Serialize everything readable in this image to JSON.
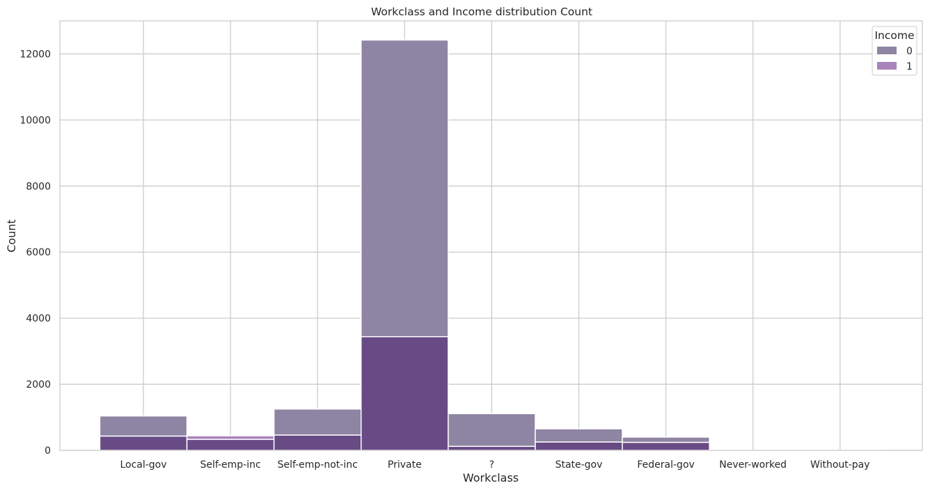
{
  "chart_data": {
    "type": "bar",
    "title": "Workclass and Income distribution Count",
    "xlabel": "Workclass",
    "ylabel": "Count",
    "categories": [
      "Local-gov",
      "Self-emp-inc",
      "Self-emp-not-inc",
      "Private",
      "?",
      "State-gov",
      "Federal-gov",
      "Never-worked",
      "Without-pay"
    ],
    "series": [
      {
        "name": "0",
        "values": [
          1040,
          330,
          1250,
          12420,
          1110,
          650,
          400,
          5,
          10
        ]
      },
      {
        "name": "1",
        "values": [
          430,
          440,
          460,
          3440,
          120,
          250,
          240,
          0,
          0
        ]
      }
    ],
    "ylim": [
      0,
      13000
    ],
    "yticks": [
      0,
      2000,
      4000,
      6000,
      8000,
      10000,
      12000
    ],
    "grid": true,
    "legend": {
      "title": "Income",
      "placement": "top-right"
    },
    "colors": {
      "series_0": "#8e84a3",
      "series_1": "#a983bc",
      "overlap": "#684a84",
      "grid": "#cccccc",
      "frame": "#cccccc"
    }
  }
}
